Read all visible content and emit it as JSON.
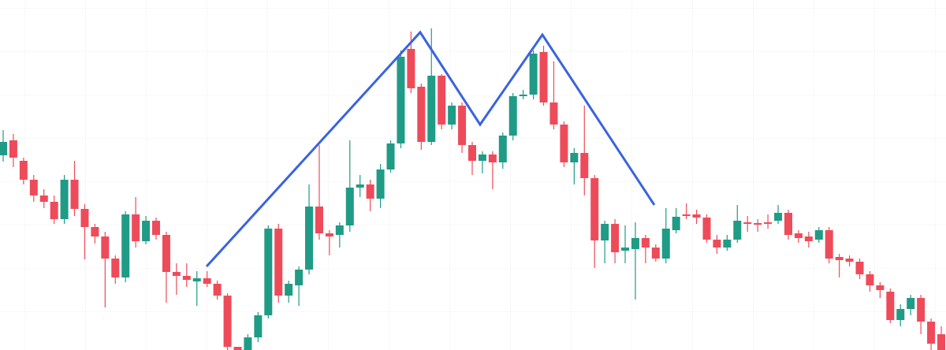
{
  "chart_data": {
    "type": "candlestick",
    "up_color": "#1f9b86",
    "down_color": "#ee4b5a",
    "ylim": [
      0,
      444
    ],
    "grid": true,
    "open": [
      247,
      266,
      240,
      216,
      196,
      188,
      166,
      216,
      179,
      156,
      144,
      116,
      92,
      172,
      138,
      164,
      146,
      99,
      94,
      87,
      91,
      84,
      69,
      4,
      0,
      16,
      44,
      154,
      69,
      82,
      102,
      182,
      148,
      146,
      158,
      206,
      210,
      192,
      229,
      262,
      382,
      334,
      264,
      348,
      286,
      310,
      260,
      240,
      248,
      238,
      272,
      322,
      324,
      378,
      314,
      286,
      238,
      250,
      218,
      139,
      160,
      126,
      128,
      142,
      130,
      116,
      152,
      172,
      172,
      168,
      140,
      130,
      140,
      162,
      161,
      162,
      164,
      174,
      148,
      144,
      140,
      152,
      118,
      116,
      112,
      96,
      82,
      74,
      38,
      52,
      66,
      36,
      20
    ],
    "high": [
      279,
      274,
      244,
      222,
      204,
      196,
      222,
      240,
      185,
      160,
      150,
      120,
      176,
      194,
      170,
      168,
      150,
      110,
      110,
      100,
      100,
      88,
      72,
      4,
      20,
      48,
      158,
      160,
      88,
      106,
      210,
      260,
      152,
      162,
      266,
      222,
      216,
      236,
      266,
      380,
      404,
      338,
      408,
      350,
      314,
      314,
      264,
      252,
      252,
      276,
      326,
      330,
      380,
      386,
      366,
      290,
      256,
      310,
      222,
      164,
      166,
      158,
      162,
      146,
      134,
      180,
      180,
      186,
      178,
      172,
      146,
      146,
      184,
      170,
      166,
      172,
      184,
      178,
      152,
      150,
      156,
      156,
      122,
      120,
      116,
      100,
      86,
      78,
      58,
      70,
      70,
      40,
      30
    ],
    "low": [
      239,
      232,
      210,
      188,
      180,
      160,
      160,
      170,
      115,
      135,
      54,
      84,
      86,
      130,
      134,
      140,
      60,
      70,
      80,
      56,
      80,
      64,
      0,
      0,
      0,
      10,
      40,
      60,
      60,
      56,
      96,
      140,
      120,
      130,
      150,
      194,
      176,
      180,
      225,
      256,
      326,
      254,
      260,
      280,
      280,
      250,
      222,
      224,
      204,
      230,
      266,
      318,
      318,
      310,
      280,
      232,
      210,
      196,
      104,
      110,
      110,
      110,
      64,
      110,
      112,
      110,
      148,
      166,
      160,
      136,
      122,
      126,
      136,
      150,
      150,
      154,
      160,
      140,
      136,
      130,
      136,
      110,
      92,
      106,
      90,
      74,
      66,
      34,
      30,
      44,
      20,
      0,
      0
    ],
    "close": [
      264,
      244,
      216,
      196,
      188,
      166,
      216,
      179,
      156,
      144,
      116,
      92,
      172,
      138,
      164,
      146,
      99,
      94,
      89,
      91,
      84,
      69,
      4,
      0,
      16,
      44,
      154,
      69,
      84,
      102,
      182,
      148,
      144,
      158,
      206,
      210,
      192,
      229,
      262,
      372,
      332,
      264,
      348,
      286,
      310,
      260,
      240,
      248,
      238,
      272,
      322,
      324,
      376,
      314,
      286,
      238,
      250,
      218,
      139,
      160,
      124,
      130,
      142,
      130,
      116,
      154,
      169,
      170,
      168,
      140,
      130,
      140,
      164,
      160,
      159,
      160,
      174,
      146,
      142,
      138,
      152,
      116,
      114,
      112,
      96,
      82,
      76,
      38,
      52,
      66,
      36,
      8,
      0
    ]
  }
}
